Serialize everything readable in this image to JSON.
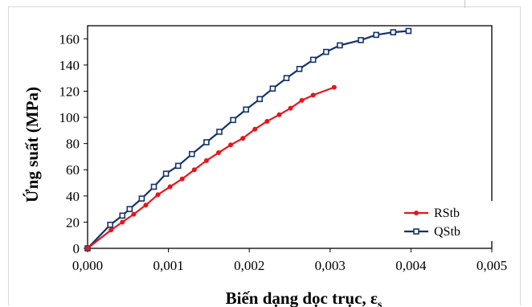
{
  "chart_data": {
    "type": "line",
    "title": "",
    "xlabel": "Biến dạng dọc trục, ε",
    "xlabel_subscript": "s",
    "ylabel": "Ứng suất (MPa)",
    "xlim": [
      0,
      0.005
    ],
    "ylim": [
      0,
      170
    ],
    "x_ticks": [
      "0,000",
      "0,001",
      "0,002",
      "0,003",
      "0,004",
      "0,005"
    ],
    "y_ticks": [
      "0",
      "20",
      "40",
      "60",
      "80",
      "100",
      "120",
      "140",
      "160"
    ],
    "grid": false,
    "legend_position": "bottom-right",
    "series": [
      {
        "name": "RStb",
        "color": "#e8141c",
        "marker": "circle-filled",
        "x": [
          0,
          0.00029,
          0.00043,
          0.00057,
          0.00072,
          0.00087,
          0.00102,
          0.00117,
          0.00132,
          0.00147,
          0.00162,
          0.00177,
          0.00192,
          0.00207,
          0.00222,
          0.00237,
          0.00251,
          0.00265,
          0.00279,
          0.00305
        ],
        "y": [
          0,
          14,
          20,
          26,
          33,
          41,
          47,
          53,
          60,
          67,
          73,
          79,
          84,
          91,
          97,
          102,
          107,
          113,
          117,
          123
        ]
      },
      {
        "name": "QStb",
        "color": "#14336b",
        "marker": "square-open",
        "x": [
          0,
          0.00028,
          0.00043,
          0.00052,
          0.00067,
          0.00082,
          0.00097,
          0.00112,
          0.00129,
          0.00147,
          0.00163,
          0.0018,
          0.00196,
          0.00213,
          0.00229,
          0.00246,
          0.00262,
          0.00279,
          0.00295,
          0.00312,
          0.00338,
          0.00357,
          0.00378,
          0.00397
        ],
        "y": [
          0,
          18,
          25,
          30,
          38,
          47,
          57,
          63,
          72,
          81,
          89,
          98,
          106,
          114,
          122,
          130,
          137,
          144,
          150,
          155,
          159,
          163,
          165,
          166
        ]
      }
    ]
  }
}
